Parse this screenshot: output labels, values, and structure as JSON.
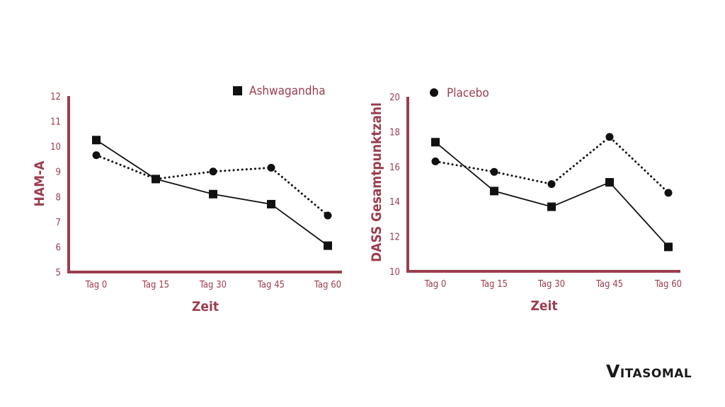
{
  "colors": {
    "axis": "#9b3d4d",
    "text": "#9b3d4d",
    "line": "#111111",
    "logo": "#1a1a1a"
  },
  "legend": {
    "ashwagandha": {
      "label": "Ashwagandha",
      "marker": "square"
    },
    "placebo": {
      "label": "Placebo",
      "marker": "circle"
    }
  },
  "logo": {
    "first": "V",
    "rest": "ITASOMAL"
  },
  "chart_data": [
    {
      "type": "line",
      "xlabel": "Zeit",
      "ylabel": "HAM-A",
      "categories": [
        "Tag 0",
        "Tag 15",
        "Tag 30",
        "Tag 45",
        "Tag 60"
      ],
      "ylim": [
        5,
        12
      ],
      "yticks": [
        5,
        6,
        7,
        8,
        9,
        10,
        11,
        12
      ],
      "series": [
        {
          "name": "Ashwagandha",
          "marker": "square",
          "style": "solid",
          "values": [
            10.25,
            8.7,
            8.1,
            7.7,
            6.05
          ]
        },
        {
          "name": "Placebo",
          "marker": "circle",
          "style": "dotted",
          "values": [
            9.65,
            8.7,
            9.0,
            9.15,
            7.25
          ]
        }
      ]
    },
    {
      "type": "line",
      "xlabel": "Zeit",
      "ylabel": "DASS Gesamtpunktzahl",
      "categories": [
        "Tag 0",
        "Tag 15",
        "Tag 30",
        "Tag 45",
        "Tag 60"
      ],
      "ylim": [
        10,
        20
      ],
      "yticks": [
        10,
        12,
        14,
        16,
        18,
        20
      ],
      "series": [
        {
          "name": "Ashwagandha",
          "marker": "square",
          "style": "solid",
          "values": [
            17.4,
            14.6,
            13.7,
            15.1,
            11.4
          ]
        },
        {
          "name": "Placebo",
          "marker": "circle",
          "style": "dotted",
          "values": [
            16.3,
            15.7,
            15.0,
            17.7,
            14.5
          ]
        }
      ]
    }
  ]
}
